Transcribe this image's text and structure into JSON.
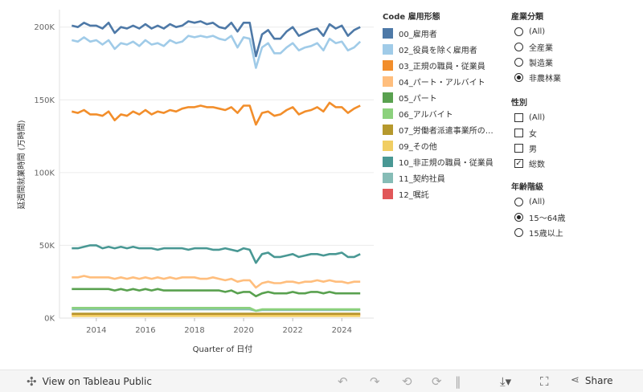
{
  "chart_data": {
    "type": "line",
    "xlabel": "Quarter of 日付",
    "ylabel": "延週間就業時間 (万時間)",
    "x_ticks": [
      "2014",
      "2016",
      "2018",
      "2020",
      "2022",
      "2024"
    ],
    "y_ticks": [
      "0K",
      "50K",
      "100K",
      "150K",
      "200K"
    ],
    "ylim": [
      0,
      212000
    ],
    "xlim": [
      2012.5,
      2025.3
    ],
    "x": [
      2013.0,
      2013.25,
      2013.5,
      2013.75,
      2014.0,
      2014.25,
      2014.5,
      2014.75,
      2015.0,
      2015.25,
      2015.5,
      2015.75,
      2016.0,
      2016.25,
      2016.5,
      2016.75,
      2017.0,
      2017.25,
      2017.5,
      2017.75,
      2018.0,
      2018.25,
      2018.5,
      2018.75,
      2019.0,
      2019.25,
      2019.5,
      2019.75,
      2020.0,
      2020.25,
      2020.5,
      2020.75,
      2021.0,
      2021.25,
      2021.5,
      2021.75,
      2022.0,
      2022.25,
      2022.5,
      2022.75,
      2023.0,
      2023.25,
      2023.5,
      2023.75,
      2024.0,
      2024.25,
      2024.5,
      2024.75
    ],
    "series": [
      {
        "name": "00_雇用者",
        "color": "#4e79a7",
        "values": [
          201000,
          200000,
          203000,
          201000,
          201000,
          199000,
          203000,
          196000,
          200000,
          199000,
          201000,
          199000,
          202000,
          199000,
          201000,
          199000,
          202000,
          200000,
          201000,
          204000,
          203000,
          204000,
          202000,
          203000,
          200000,
          199000,
          203000,
          197000,
          203000,
          203000,
          180000,
          195000,
          198000,
          192000,
          192000,
          197000,
          200000,
          194000,
          196000,
          198000,
          199000,
          194000,
          202000,
          199000,
          201000,
          194000,
          198000,
          200000
        ]
      },
      {
        "name": "02_役員を除く雇用者",
        "color": "#a0cbe8",
        "values": [
          191000,
          190000,
          193000,
          190000,
          191000,
          188000,
          191000,
          185000,
          189000,
          188000,
          190000,
          187000,
          191000,
          188000,
          189000,
          187000,
          191000,
          189000,
          190000,
          194000,
          193000,
          194000,
          193000,
          194000,
          192000,
          191000,
          194000,
          186000,
          193000,
          192000,
          172000,
          186000,
          189000,
          182000,
          182000,
          186000,
          189000,
          184000,
          186000,
          187000,
          189000,
          184000,
          192000,
          189000,
          190000,
          184000,
          186000,
          190000
        ]
      },
      {
        "name": "03_正規の職員・従業員",
        "color": "#f28e2b",
        "values": [
          142000,
          141000,
          143000,
          140000,
          140000,
          139000,
          142000,
          136000,
          140000,
          139000,
          142000,
          140000,
          143000,
          140000,
          142000,
          141000,
          143000,
          142000,
          144000,
          145000,
          145000,
          146000,
          145000,
          145000,
          144000,
          143000,
          145000,
          141000,
          146000,
          146000,
          133000,
          141000,
          142000,
          139000,
          140000,
          143000,
          145000,
          140000,
          142000,
          143000,
          145000,
          142000,
          148000,
          145000,
          145000,
          141000,
          144000,
          146000
        ]
      },
      {
        "name": "04_パート・アルバイト",
        "color": "#ffbe7d",
        "values": [
          28000,
          28000,
          29000,
          28000,
          28000,
          28000,
          28000,
          27000,
          28000,
          27000,
          28000,
          27000,
          28000,
          27000,
          28000,
          27000,
          28000,
          27000,
          28000,
          28000,
          28000,
          27000,
          27000,
          28000,
          27000,
          26000,
          27000,
          25000,
          26000,
          26000,
          21000,
          24000,
          25000,
          24000,
          24000,
          25000,
          25000,
          24000,
          25000,
          25000,
          26000,
          25000,
          26000,
          25000,
          25000,
          24000,
          25000,
          25000
        ]
      },
      {
        "name": "05_パート",
        "color": "#59a14f",
        "values": [
          20000,
          20000,
          20000,
          20000,
          20000,
          20000,
          20000,
          19000,
          20000,
          19000,
          20000,
          19000,
          20000,
          19000,
          20000,
          19000,
          19000,
          19000,
          19000,
          19000,
          19000,
          19000,
          19000,
          19000,
          19000,
          18000,
          19000,
          17000,
          18000,
          18000,
          15000,
          17000,
          18000,
          17000,
          17000,
          17000,
          18000,
          17000,
          17000,
          18000,
          18000,
          17000,
          18000,
          17000,
          17000,
          17000,
          17000,
          17000
        ]
      },
      {
        "name": "06_アルバイト",
        "color": "#8cd17d",
        "values": [
          7000,
          7000,
          7000,
          7000,
          7000,
          7000,
          7000,
          7000,
          7000,
          7000,
          7000,
          7000,
          7000,
          7000,
          7000,
          7000,
          7000,
          7000,
          7000,
          7000,
          7000,
          7000,
          7000,
          7000,
          7000,
          7000,
          7000,
          7000,
          7000,
          7000,
          5000,
          6000,
          6000,
          6000,
          6000,
          6000,
          6000,
          6000,
          6000,
          6000,
          6000,
          6000,
          6000,
          6000,
          6000,
          6000,
          6000,
          6000
        ]
      },
      {
        "name": "07_労働者派遣事業所の…",
        "color": "#b6992d",
        "values": [
          3000,
          3000,
          3000,
          3000,
          3000,
          3000,
          3000,
          3000,
          3000,
          3000,
          3000,
          3000,
          3000,
          3000,
          3000,
          3000,
          3000,
          3000,
          3000,
          3000,
          3000,
          3000,
          3000,
          3000,
          3000,
          3000,
          3000,
          3000,
          3000,
          3000,
          3000,
          3000,
          3000,
          3000,
          3000,
          3000,
          3000,
          3000,
          3000,
          3000,
          3000,
          3000,
          3000,
          3000,
          3000,
          3000,
          3000,
          3000
        ]
      },
      {
        "name": "09_その他",
        "color": "#f1ce63",
        "values": [
          1500,
          1500,
          1500,
          1500,
          1500,
          1500,
          1500,
          1500,
          1500,
          1500,
          1500,
          1500,
          1500,
          1500,
          1500,
          1500,
          1500,
          1500,
          1500,
          1500,
          1500,
          1500,
          1500,
          1500,
          1500,
          1500,
          1500,
          1500,
          1500,
          1500,
          1500,
          1500,
          1500,
          1500,
          1500,
          1500,
          1500,
          1500,
          1500,
          1500,
          1500,
          1500,
          1500,
          1500,
          1500,
          1500,
          1500,
          1500
        ]
      },
      {
        "name": "10_非正規の職員・従業員",
        "color": "#499894",
        "values": [
          48000,
          48000,
          49000,
          50000,
          50000,
          48000,
          49000,
          48000,
          49000,
          48000,
          49000,
          48000,
          48000,
          48000,
          47000,
          48000,
          48000,
          48000,
          48000,
          47000,
          48000,
          48000,
          48000,
          47000,
          47000,
          48000,
          47000,
          46000,
          48000,
          47000,
          38000,
          44000,
          45000,
          42000,
          42000,
          43000,
          44000,
          42000,
          43000,
          44000,
          44000,
          43000,
          44000,
          44000,
          45000,
          42000,
          42000,
          44000
        ]
      },
      {
        "name": "11_契約社員",
        "color": "#86bcb6",
        "values": [
          6000,
          6000,
          6000,
          6000,
          6000,
          6000,
          6000,
          6000,
          6000,
          6000,
          6000,
          6000,
          6000,
          6000,
          6000,
          6000,
          6000,
          6000,
          6000,
          6000,
          6000,
          6000,
          6000,
          6000,
          6000,
          6000,
          6000,
          6000,
          6000,
          6000,
          5000,
          5500,
          5500,
          5500,
          5500,
          5500,
          5500,
          5500,
          5500,
          5500,
          5500,
          5500,
          5500,
          5500,
          5500,
          5500,
          5500,
          5500
        ]
      },
      {
        "name": "12_嘱託",
        "color": "#e15759",
        "values": [
          2500,
          2500,
          2500,
          2500,
          2500,
          2500,
          2500,
          2500,
          2500,
          2500,
          2500,
          2500,
          2500,
          2500,
          2500,
          2500,
          2500,
          2500,
          2500,
          2500,
          2500,
          2500,
          2500,
          2500,
          2500,
          2500,
          2500,
          2500,
          2500,
          2500,
          2500,
          2500,
          2500,
          2500,
          2500,
          2500,
          2500,
          2500,
          2500,
          2500,
          2500,
          2500,
          2500,
          2500,
          2500,
          2500,
          2500,
          2500
        ]
      }
    ],
    "legend_placement": "right",
    "grid": "horizontal"
  },
  "legend": {
    "title": "Code 雇用形態"
  },
  "filters": {
    "industry": {
      "title": "産業分類",
      "options": [
        "(All)",
        "全産業",
        "製造業",
        "非農林業"
      ],
      "selected": 3
    },
    "sex": {
      "title": "性別",
      "options": [
        "(All)",
        "女",
        "男",
        "総数"
      ],
      "checked": [
        false,
        false,
        false,
        true
      ]
    },
    "age": {
      "title": "年齢階級",
      "options": [
        "(All)",
        "15～64歳",
        "15歳以上"
      ],
      "selected": 1
    }
  },
  "toolbar": {
    "view_label": "View on Tableau Public",
    "share_label": "Share"
  }
}
